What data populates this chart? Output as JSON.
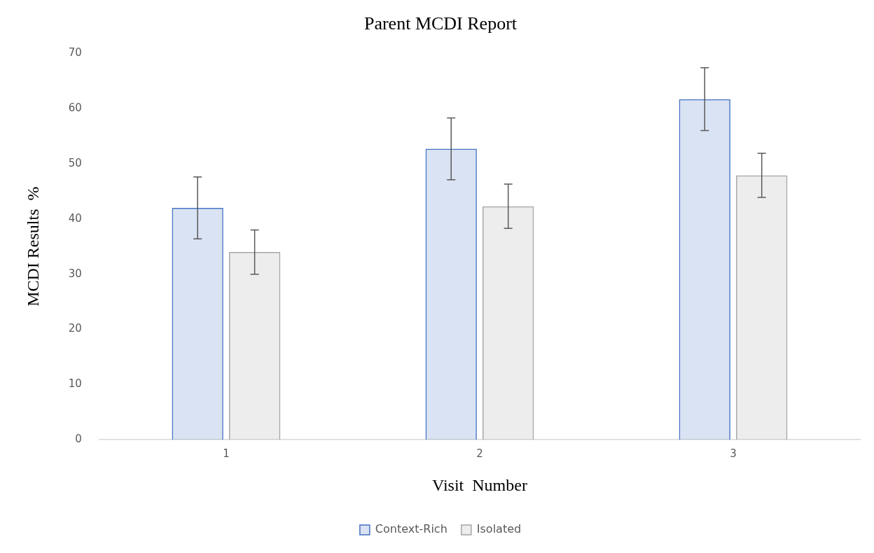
{
  "chart_data": {
    "type": "bar",
    "title": "Parent MCDI Report",
    "xlabel": "Visit  Number",
    "ylabel": "MCDI Results  %",
    "categories": [
      "1",
      "2",
      "3"
    ],
    "series": [
      {
        "name": "Context-Rich",
        "color": "#4472c4",
        "values": [
          42.0,
          52.7,
          61.7
        ],
        "errors": [
          5.6,
          5.6,
          5.7
        ]
      },
      {
        "name": "Isolated",
        "color": "#a5a5a5",
        "values": [
          34.0,
          42.3,
          47.9
        ],
        "errors": [
          4.0,
          4.0,
          4.0
        ]
      }
    ],
    "ylim": [
      0,
      70
    ],
    "yticks": [
      0,
      10,
      20,
      30,
      40,
      50,
      60,
      70
    ],
    "grid": false,
    "legend": "bottom"
  }
}
